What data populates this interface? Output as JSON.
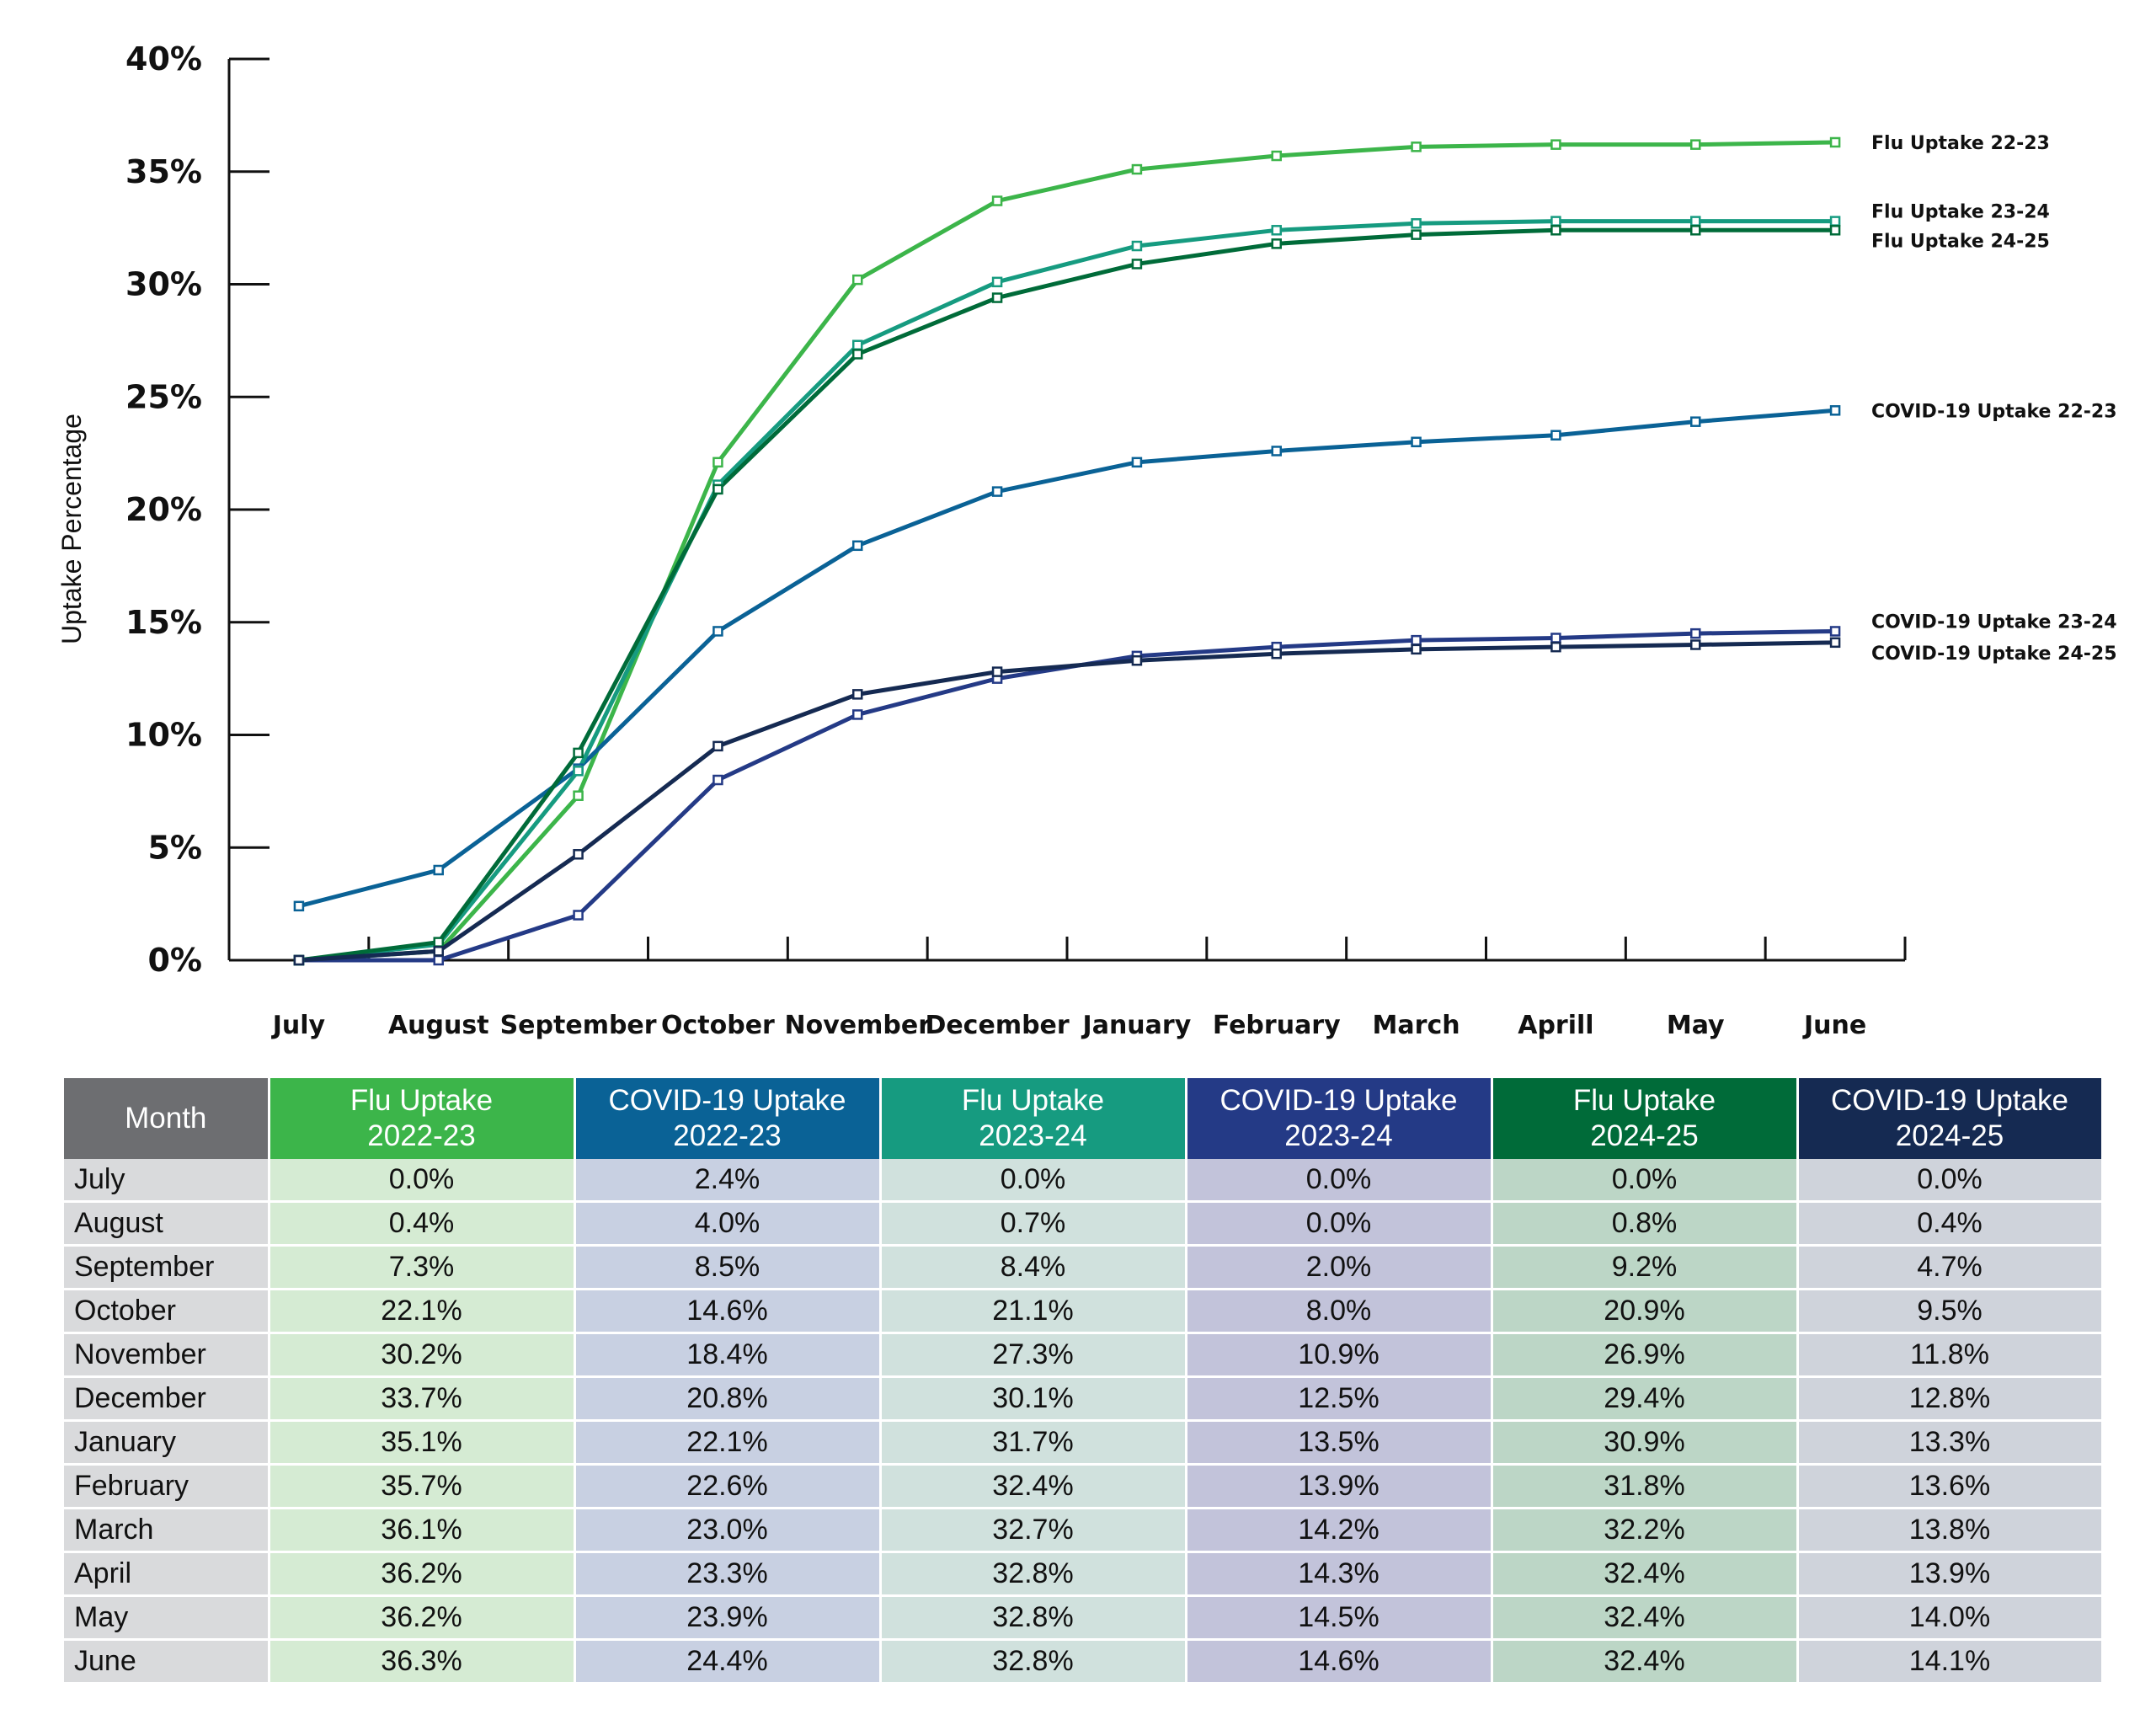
{
  "chart_data": {
    "type": "line",
    "title": "",
    "xlabel": "",
    "ylabel": "Uptake Percentage",
    "ylim": [
      0,
      40
    ],
    "yticks": [
      "0%",
      "5%",
      "10%",
      "15%",
      "20%",
      "25%",
      "30%",
      "35%",
      "40%"
    ],
    "categories": [
      "July",
      "August",
      "September",
      "October",
      "November",
      "December",
      "January",
      "February",
      "March",
      "Aprill",
      "May",
      "June"
    ],
    "series": [
      {
        "name": "Flu Uptake 22-23",
        "color": "#3cb54a",
        "values": [
          0.0,
          0.4,
          7.3,
          22.1,
          30.2,
          33.7,
          35.1,
          35.7,
          36.1,
          36.2,
          36.2,
          36.3
        ]
      },
      {
        "name": "COVID-19 Uptake 22-23",
        "color": "#0a6296",
        "values": [
          2.4,
          4.0,
          8.5,
          14.6,
          18.4,
          20.8,
          22.1,
          22.6,
          23.0,
          23.3,
          23.9,
          24.4
        ]
      },
      {
        "name": "Flu Uptake 23-24",
        "color": "#169b80",
        "values": [
          0.0,
          0.7,
          8.4,
          21.1,
          27.3,
          30.1,
          31.7,
          32.4,
          32.7,
          32.8,
          32.8,
          32.8
        ]
      },
      {
        "name": "COVID-19 Uptake 23-24",
        "color": "#243a86",
        "values": [
          0.0,
          0.0,
          2.0,
          8.0,
          10.9,
          12.5,
          13.5,
          13.9,
          14.2,
          14.3,
          14.5,
          14.6
        ]
      },
      {
        "name": "Flu Uptake 24-25",
        "color": "#006b39",
        "values": [
          0.0,
          0.8,
          9.2,
          20.9,
          26.9,
          29.4,
          30.9,
          31.8,
          32.2,
          32.4,
          32.4,
          32.4
        ]
      },
      {
        "name": "COVID-19 Uptake 24-25",
        "color": "#152a52",
        "values": [
          0.0,
          0.4,
          4.7,
          9.5,
          11.8,
          12.8,
          13.3,
          13.6,
          13.8,
          13.9,
          14.0,
          14.1
        ]
      }
    ]
  },
  "table": {
    "month_header": "Month",
    "header_color": "#6d6e71",
    "month_cell_color": "#d9dadc",
    "columns": [
      {
        "line1": "Flu Uptake",
        "line2": "2022-23",
        "color": "#3cb54a",
        "cell_color": "#d5ebd3"
      },
      {
        "line1": "COVID-19 Uptake",
        "line2": "2022-23",
        "color": "#0a6296",
        "cell_color": "#c8d0e2"
      },
      {
        "line1": "Flu Uptake",
        "line2": "2023-24",
        "color": "#169b80",
        "cell_color": "#d0e1dd"
      },
      {
        "line1": "COVID-19 Uptake",
        "line2": "2023-24",
        "color": "#243a86",
        "cell_color": "#c2c3da"
      },
      {
        "line1": "Flu Uptake",
        "line2": "2024-25",
        "color": "#006b39",
        "cell_color": "#bcd6c6"
      },
      {
        "line1": "COVID-19 Uptake",
        "line2": "2024-25",
        "color": "#152a52",
        "cell_color": "#cfd3db"
      }
    ],
    "rows": [
      {
        "month": "July",
        "cells": [
          "0.0%",
          "2.4%",
          "0.0%",
          "0.0%",
          "0.0%",
          "0.0%"
        ]
      },
      {
        "month": "August",
        "cells": [
          "0.4%",
          "4.0%",
          "0.7%",
          "0.0%",
          "0.8%",
          "0.4%"
        ]
      },
      {
        "month": "September",
        "cells": [
          "7.3%",
          "8.5%",
          "8.4%",
          "2.0%",
          "9.2%",
          "4.7%"
        ]
      },
      {
        "month": "October",
        "cells": [
          "22.1%",
          "14.6%",
          "21.1%",
          "8.0%",
          "20.9%",
          "9.5%"
        ]
      },
      {
        "month": "November",
        "cells": [
          "30.2%",
          "18.4%",
          "27.3%",
          "10.9%",
          "26.9%",
          "11.8%"
        ]
      },
      {
        "month": "December",
        "cells": [
          "33.7%",
          "20.8%",
          "30.1%",
          "12.5%",
          "29.4%",
          "12.8%"
        ]
      },
      {
        "month": "January",
        "cells": [
          "35.1%",
          "22.1%",
          "31.7%",
          "13.5%",
          "30.9%",
          "13.3%"
        ]
      },
      {
        "month": "February",
        "cells": [
          "35.7%",
          "22.6%",
          "32.4%",
          "13.9%",
          "31.8%",
          "13.6%"
        ]
      },
      {
        "month": "March",
        "cells": [
          "36.1%",
          "23.0%",
          "32.7%",
          "14.2%",
          "32.2%",
          "13.8%"
        ]
      },
      {
        "month": "April",
        "cells": [
          "36.2%",
          "23.3%",
          "32.8%",
          "14.3%",
          "32.4%",
          "13.9%"
        ]
      },
      {
        "month": "May",
        "cells": [
          "36.2%",
          "23.9%",
          "32.8%",
          "14.5%",
          "32.4%",
          "14.0%"
        ]
      },
      {
        "month": "June",
        "cells": [
          "36.3%",
          "24.4%",
          "32.8%",
          "14.6%",
          "32.4%",
          "14.1%"
        ]
      }
    ]
  }
}
